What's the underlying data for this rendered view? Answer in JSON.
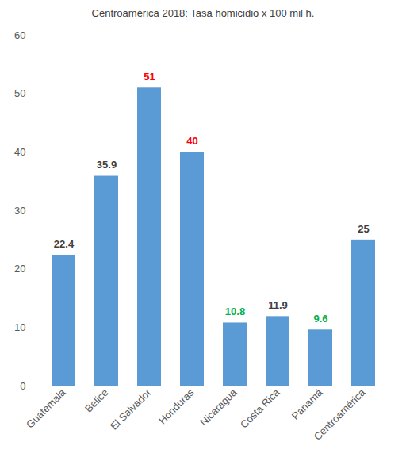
{
  "chart_data": {
    "type": "bar",
    "title": "Centroamérica 2018: Tasa homicidio x 100 mil h.",
    "categories": [
      "Guatemala",
      "Belice",
      "El Salvador",
      "Honduras",
      "Nicaragua",
      "Costa Rica",
      "Panamá",
      "Centroamérica"
    ],
    "values": [
      22.4,
      35.9,
      51,
      40,
      10.8,
      11.9,
      9.6,
      25
    ],
    "color": "#5b9bd5",
    "ylim": [
      0,
      60
    ],
    "yticks": [
      0,
      10,
      20,
      30,
      40,
      50,
      60
    ],
    "grid": false,
    "data_labels": true
  }
}
